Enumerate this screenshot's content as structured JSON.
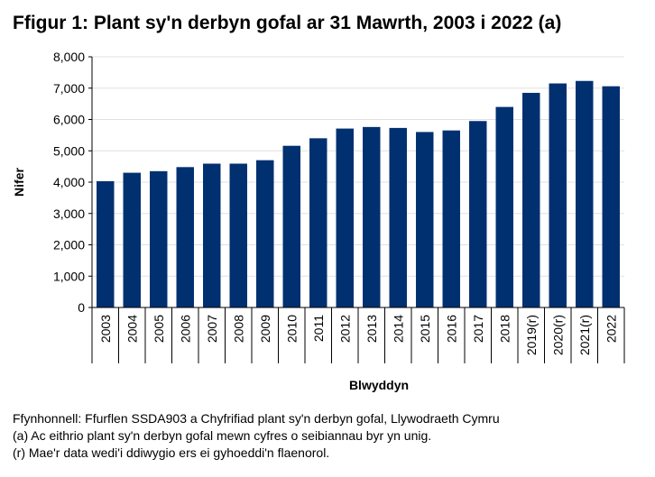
{
  "chart_data": {
    "type": "bar",
    "title": "Ffigur 1: Plant sy'n derbyn gofal ar 31 Mawrth, 2003 i 2022 (a)",
    "x_label": "Blwyddyn",
    "y_label": "Nifer",
    "categories": [
      "2003",
      "2004",
      "2005",
      "2006",
      "2007",
      "2008",
      "2009",
      "2010",
      "2011",
      "2012",
      "2013",
      "2014",
      "2015",
      "2016",
      "2017",
      "2018",
      "2019(r)",
      "2020(r)",
      "2021(r)",
      "2022"
    ],
    "values": [
      4030,
      4300,
      4350,
      4480,
      4590,
      4590,
      4700,
      5160,
      5400,
      5710,
      5760,
      5730,
      5600,
      5650,
      5950,
      6400,
      6850,
      7150,
      7230,
      7060
    ],
    "color": "#003070",
    "ylim": [
      0,
      8000
    ],
    "yticks": [
      0,
      {
        "value": 1000,
        "label": "1,000"
      },
      {
        "value": 2000,
        "label": "2,000"
      },
      {
        "value": 3000,
        "label": "3,000"
      },
      {
        "value": 4000,
        "label": "4,000"
      },
      {
        "value": 5000,
        "label": "5,000"
      },
      {
        "value": 6000,
        "label": "6,000"
      },
      {
        "value": 7000,
        "label": "7,000"
      },
      {
        "value": 8000,
        "label": "8,000"
      }
    ],
    "grid": true,
    "notes": [
      "Ffynhonnell: Ffurflen SSDA903 a Chyfrifiad plant sy'n derbyn gofal, Llywodraeth Cymru",
      "(a) Ac eithrio plant sy'n derbyn gofal mewn cyfres o seibiannau byr yn unig.",
      "(r) Mae'r data wedi'i ddiwygio ers ei gyhoeddi'n flaenorol."
    ]
  }
}
